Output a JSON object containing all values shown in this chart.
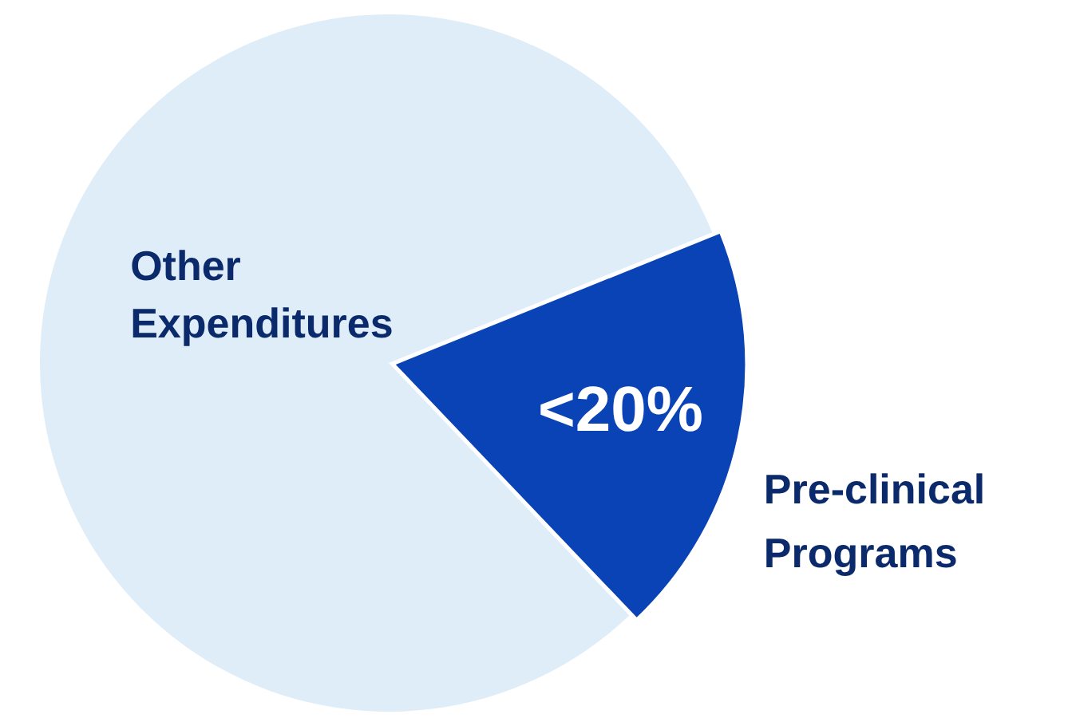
{
  "chart_data": {
    "type": "pie",
    "categories": [
      "Other\nExpenditures",
      "Pre-clinical\nPrograms"
    ],
    "values": [
      81,
      19
    ],
    "colors": [
      "#deedf8",
      "#0a43b5"
    ],
    "value_labels": [
      null,
      "<20%"
    ],
    "legend": false
  }
}
